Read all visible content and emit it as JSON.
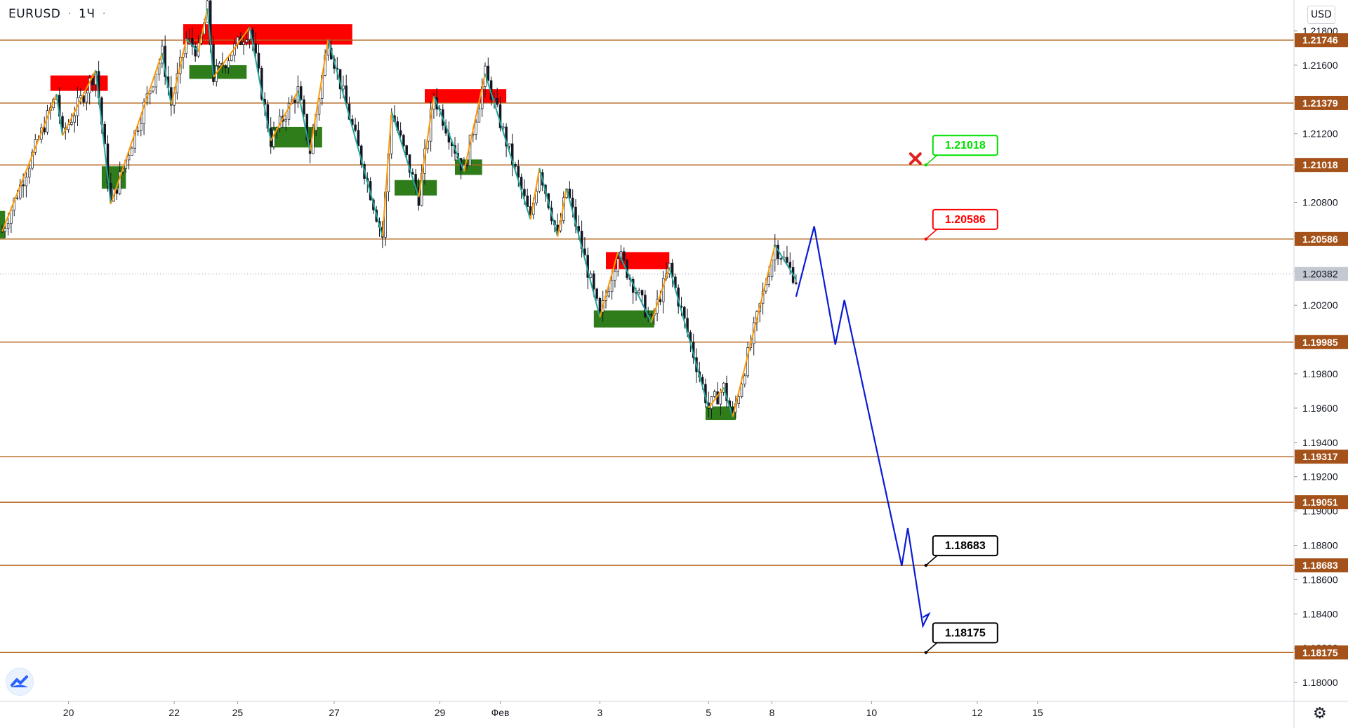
{
  "header": {
    "symbol": "EURUSD",
    "interval": "1Ч",
    "currency": "USD"
  },
  "chart_data": {
    "type": "candlestick",
    "instrument": "EURUSD",
    "timeframe": "1Ч",
    "y_range": [
      1.1789,
      1.2198
    ],
    "price_ticks": [
      "1.18000",
      "1.18200",
      "1.18400",
      "1.18600",
      "1.18800",
      "1.19000",
      "1.19200",
      "1.19400",
      "1.19600",
      "1.19800",
      "1.20000",
      "1.20200",
      "1.20400",
      "1.20600",
      "1.20800",
      "1.21000",
      "1.21200",
      "1.21400",
      "1.21600",
      "1.21800"
    ],
    "price_tick_values": [
      1.18,
      1.182,
      1.184,
      1.186,
      1.188,
      1.19,
      1.192,
      1.194,
      1.196,
      1.198,
      1.2,
      1.202,
      1.204,
      1.206,
      1.208,
      1.21,
      1.212,
      1.214,
      1.216,
      1.218
    ],
    "x_axis_labels": [
      {
        "label": "20",
        "idx": 22
      },
      {
        "label": "22",
        "idx": 57
      },
      {
        "label": "25",
        "idx": 78
      },
      {
        "label": "27",
        "idx": 110
      },
      {
        "label": "29",
        "idx": 145
      },
      {
        "label": "Фев",
        "idx": 165
      },
      {
        "label": "3",
        "idx": 198
      },
      {
        "label": "5",
        "idx": 234
      },
      {
        "label": "8",
        "idx": 255
      },
      {
        "label": "10",
        "idx": 288
      },
      {
        "label": "12",
        "idx": 323
      },
      {
        "label": "15",
        "idx": 343
      }
    ],
    "current_price": "1.20382",
    "current_value": 1.20382,
    "levels": [
      {
        "label": "1.21746",
        "value": 1.21746
      },
      {
        "label": "1.21379",
        "value": 1.21379
      },
      {
        "label": "1.21018",
        "value": 1.21018
      },
      {
        "label": "1.20586",
        "value": 1.20586
      },
      {
        "label": "1.19985",
        "value": 1.19985
      },
      {
        "label": "1.19317",
        "value": 1.19317
      },
      {
        "label": "1.19051",
        "value": 1.19051
      },
      {
        "label": "1.18683",
        "value": 1.18683
      },
      {
        "label": "1.18175",
        "value": 1.18175
      }
    ],
    "callouts": [
      {
        "label": "1.21018",
        "value": 1.21018,
        "idx": 306,
        "style": "invalidated-stop",
        "color": "#00e000"
      },
      {
        "label": "1.20586",
        "value": 1.20586,
        "idx": 306,
        "style": "stop",
        "color": "#ff0000"
      },
      {
        "label": "1.18683",
        "value": 1.18683,
        "idx": 306,
        "style": "target",
        "color": "#000000"
      },
      {
        "label": "1.18175",
        "value": 1.18175,
        "idx": 306,
        "style": "target",
        "color": "#000000"
      }
    ],
    "supply_zones": [
      {
        "i1": 16,
        "i2": 35,
        "low": 1.2145,
        "high": 1.2154
      },
      {
        "i1": 60,
        "i2": 116,
        "low": 1.2172,
        "high": 1.2184
      },
      {
        "i1": 140,
        "i2": 167,
        "low": 1.2138,
        "high": 1.2146
      },
      {
        "i1": 200,
        "i2": 221,
        "low": 1.2041,
        "high": 1.2051
      }
    ],
    "demand_zones": [
      {
        "i1": -2,
        "i2": 1,
        "low": 1.2059,
        "high": 1.2075
      },
      {
        "i1": 33,
        "i2": 41,
        "low": 1.2088,
        "high": 1.2101
      },
      {
        "i1": 62,
        "i2": 81,
        "low": 1.2152,
        "high": 1.216
      },
      {
        "i1": 89,
        "i2": 106,
        "low": 1.2112,
        "high": 1.2124
      },
      {
        "i1": 130,
        "i2": 144,
        "low": 1.2084,
        "high": 1.2093
      },
      {
        "i1": 150,
        "i2": 159,
        "low": 1.2096,
        "high": 1.2105
      },
      {
        "i1": 196,
        "i2": 216,
        "low": 1.2007,
        "high": 1.2017
      },
      {
        "i1": 233,
        "i2": 243,
        "low": 1.1953,
        "high": 1.1961
      }
    ],
    "zigzag": [
      {
        "idx": 0,
        "price": 1.2063
      },
      {
        "idx": 18,
        "price": 1.2143
      },
      {
        "idx": 20,
        "price": 1.2119
      },
      {
        "idx": 31,
        "price": 1.2157
      },
      {
        "idx": 36,
        "price": 1.2079
      },
      {
        "idx": 53,
        "price": 1.2167
      },
      {
        "idx": 56,
        "price": 1.2137
      },
      {
        "idx": 61,
        "price": 1.2175
      },
      {
        "idx": 65,
        "price": 1.2168
      },
      {
        "idx": 68,
        "price": 1.2193
      },
      {
        "idx": 70,
        "price": 1.2153
      },
      {
        "idx": 82,
        "price": 1.2182
      },
      {
        "idx": 89,
        "price": 1.2116
      },
      {
        "idx": 98,
        "price": 1.2145
      },
      {
        "idx": 102,
        "price": 1.211
      },
      {
        "idx": 108,
        "price": 1.2175
      },
      {
        "idx": 126,
        "price": 1.206
      },
      {
        "idx": 129,
        "price": 1.2133
      },
      {
        "idx": 138,
        "price": 1.2083
      },
      {
        "idx": 143,
        "price": 1.2142
      },
      {
        "idx": 153,
        "price": 1.2098
      },
      {
        "idx": 160,
        "price": 1.2155
      },
      {
        "idx": 175,
        "price": 1.207
      },
      {
        "idx": 178,
        "price": 1.21
      },
      {
        "idx": 184,
        "price": 1.206
      },
      {
        "idx": 187,
        "price": 1.2088
      },
      {
        "idx": 198,
        "price": 1.2013
      },
      {
        "idx": 204,
        "price": 1.2051
      },
      {
        "idx": 215,
        "price": 1.201
      },
      {
        "idx": 221,
        "price": 1.2042
      },
      {
        "idx": 234,
        "price": 1.196
      },
      {
        "idx": 239,
        "price": 1.1972
      },
      {
        "idx": 242,
        "price": 1.1955
      },
      {
        "idx": 256,
        "price": 1.2055
      },
      {
        "idx": 263,
        "price": 1.2035
      }
    ],
    "forecast_path": [
      {
        "idx": 263,
        "price": 1.2025
      },
      {
        "idx": 269,
        "price": 1.2066
      },
      {
        "idx": 276,
        "price": 1.1997
      },
      {
        "idx": 279,
        "price": 1.2023
      },
      {
        "idx": 298,
        "price": 1.1868
      },
      {
        "idx": 300,
        "price": 1.189
      },
      {
        "idx": 305,
        "price": 1.1833
      },
      {
        "idx": 307,
        "price": 1.184
      },
      {
        "idx": 305,
        "price": 1.1838
      }
    ],
    "grid": false,
    "legend": "none"
  },
  "colors": {
    "level_line": "#b5651d",
    "level_label_bg": "#a4521a",
    "supply": "#ff0000",
    "demand": "#2e7d1a",
    "zigzag_up": "#ff9800",
    "zigzag_down": "#26a69a",
    "forecast": "#0a1bd6",
    "candle": "#131722",
    "current_label_bg": "#c4c8d0"
  },
  "icons": {
    "logo": "tradingview-logo-icon",
    "settings": "gear-icon",
    "invalidated": "red-cross-icon"
  }
}
